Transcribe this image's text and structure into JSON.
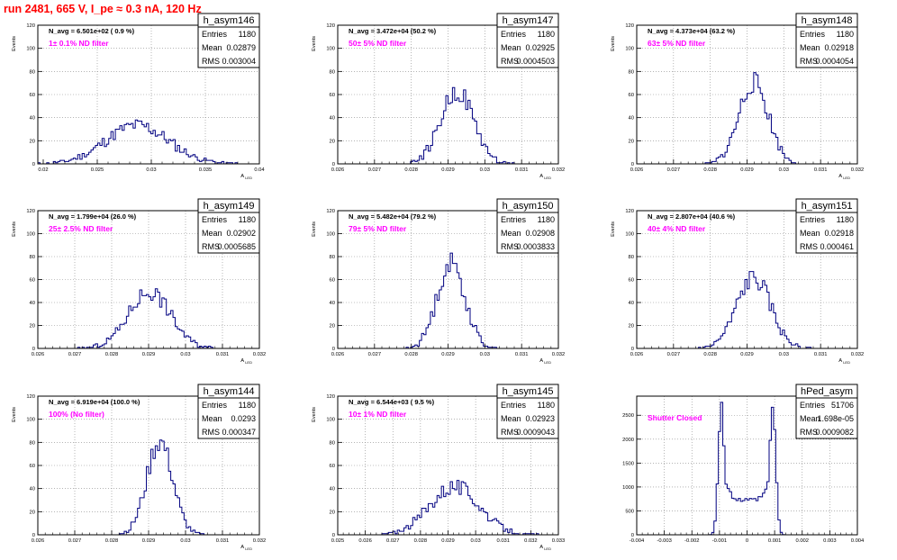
{
  "canvas_title": "run 2481,   665 V, I_pe ≈ 0.3 nA, 120 Hz",
  "stats_labels": {
    "entries": "Entries",
    "mean": "Mean",
    "rms": "RMS"
  },
  "colors": {
    "histogram": "#000080",
    "annotation": "#ff00ff",
    "title": "#ff0000",
    "grid": "#888888"
  },
  "chart_data": [
    {
      "type": "bar",
      "name": "h_asym146",
      "navg": "N_avg = 6.501e+02 ( 0.9 %)",
      "note": "1± 0.1% ND filter",
      "entries": "1180",
      "mean": "0.02879",
      "rms": "0.003004",
      "ylabel": "Events",
      "xlabel": "A_LED",
      "xlim": [
        0.0195,
        0.04
      ],
      "ylim": [
        0,
        120
      ],
      "xticks": [
        "0.02",
        "0.025",
        "0.03",
        "0.035",
        "0.04"
      ],
      "yticks": [
        "0",
        "20",
        "40",
        "60",
        "80",
        "100",
        "120"
      ],
      "dist": {
        "mu": 0.0287,
        "sigma": 0.0029,
        "bins": 100,
        "xmin": 0.0195,
        "xmax": 0.04,
        "seed": 11
      }
    },
    {
      "type": "bar",
      "name": "h_asym147",
      "navg": "N_avg = 3.472e+04 (50.2 %)",
      "note": "50± 5% ND filter",
      "entries": "1180",
      "mean": "0.02925",
      "rms": "0.0004503",
      "ylabel": "Events",
      "xlabel": "A_LED",
      "xlim": [
        0.026,
        0.032
      ],
      "ylim": [
        0,
        120
      ],
      "xticks": [
        "0.026",
        "0.027",
        "0.028",
        "0.029",
        "0.03",
        "0.031",
        "0.032"
      ],
      "yticks": [
        "0",
        "20",
        "40",
        "60",
        "80",
        "100",
        "120"
      ],
      "dist": {
        "mu": 0.02925,
        "sigma": 0.00045,
        "bins": 100,
        "xmin": 0.026,
        "xmax": 0.032,
        "seed": 22
      }
    },
    {
      "type": "bar",
      "name": "h_asym148",
      "navg": "N_avg = 4.373e+04 (63.2 %)",
      "note": "63± 5% ND filter",
      "entries": "1180",
      "mean": "0.02918",
      "rms": "0.0004054",
      "ylabel": "Events",
      "xlabel": "A_LED",
      "xlim": [
        0.026,
        0.032
      ],
      "ylim": [
        0,
        120
      ],
      "xticks": [
        "0.026",
        "0.027",
        "0.028",
        "0.029",
        "0.03",
        "0.031",
        "0.032"
      ],
      "yticks": [
        "0",
        "20",
        "40",
        "60",
        "80",
        "100",
        "120"
      ],
      "dist": {
        "mu": 0.02918,
        "sigma": 0.0004,
        "bins": 100,
        "xmin": 0.026,
        "xmax": 0.032,
        "seed": 33
      }
    },
    {
      "type": "bar",
      "name": "h_asym149",
      "navg": "N_avg = 1.799e+04 (26.0 %)",
      "note": "25± 2.5% ND filter",
      "entries": "1180",
      "mean": "0.02902",
      "rms": "0.0005685",
      "ylabel": "Events",
      "xlabel": "A_LED",
      "xlim": [
        0.026,
        0.032
      ],
      "ylim": [
        0,
        120
      ],
      "xticks": [
        "0.026",
        "0.027",
        "0.028",
        "0.029",
        "0.03",
        "0.031",
        "0.032"
      ],
      "yticks": [
        "0",
        "20",
        "40",
        "60",
        "80",
        "100",
        "120"
      ],
      "dist": {
        "mu": 0.02902,
        "sigma": 0.00057,
        "bins": 100,
        "xmin": 0.026,
        "xmax": 0.032,
        "seed": 44
      }
    },
    {
      "type": "bar",
      "name": "h_asym150",
      "navg": "N_avg = 5.482e+04 (79.2 %)",
      "note": "79± 5% ND filter",
      "entries": "1180",
      "mean": "0.02908",
      "rms": "0.0003833",
      "ylabel": "Events",
      "xlabel": "A_LED",
      "xlim": [
        0.026,
        0.032
      ],
      "ylim": [
        0,
        120
      ],
      "xticks": [
        "0.026",
        "0.027",
        "0.028",
        "0.029",
        "0.03",
        "0.031",
        "0.032"
      ],
      "yticks": [
        "0",
        "20",
        "40",
        "60",
        "80",
        "100",
        "120"
      ],
      "dist": {
        "mu": 0.02908,
        "sigma": 0.00038,
        "bins": 100,
        "xmin": 0.026,
        "xmax": 0.032,
        "seed": 55
      }
    },
    {
      "type": "bar",
      "name": "h_asym151",
      "navg": "N_avg = 2.807e+04 (40.6 %)",
      "note": "40± 4% ND filter",
      "entries": "1180",
      "mean": "0.02918",
      "rms": "0.000461",
      "ylabel": "Events",
      "xlabel": "A_LED",
      "xlim": [
        0.026,
        0.032
      ],
      "ylim": [
        0,
        120
      ],
      "xticks": [
        "0.026",
        "0.027",
        "0.028",
        "0.029",
        "0.03",
        "0.031",
        "0.032"
      ],
      "yticks": [
        "0",
        "20",
        "40",
        "60",
        "80",
        "100",
        "120"
      ],
      "dist": {
        "mu": 0.02918,
        "sigma": 0.00046,
        "bins": 100,
        "xmin": 0.026,
        "xmax": 0.032,
        "seed": 66
      }
    },
    {
      "type": "bar",
      "name": "h_asym144",
      "navg": "N_avg = 6.919e+04 (100.0 %)",
      "note": "100% (No filter)",
      "entries": "1180",
      "mean": "0.0293",
      "rms": "0.000347",
      "ylabel": "Events",
      "xlabel": "A_LED",
      "xlim": [
        0.026,
        0.032
      ],
      "ylim": [
        0,
        120
      ],
      "xticks": [
        "0.026",
        "0.027",
        "0.028",
        "0.029",
        "0.03",
        "0.031",
        "0.032"
      ],
      "yticks": [
        "0",
        "20",
        "40",
        "60",
        "80",
        "100",
        "120"
      ],
      "dist": {
        "mu": 0.0293,
        "sigma": 0.00035,
        "bins": 100,
        "xmin": 0.026,
        "xmax": 0.032,
        "seed": 77
      }
    },
    {
      "type": "bar",
      "name": "h_asym145",
      "navg": "N_avg = 6.544e+03 ( 9.5 %)",
      "note": "10± 1% ND filter",
      "entries": "1180",
      "mean": "0.02923",
      "rms": "0.0009043",
      "ylabel": "Events",
      "xlabel": "A_LED",
      "xlim": [
        0.025,
        0.033
      ],
      "ylim": [
        0,
        120
      ],
      "xticks": [
        "0.025",
        "0.026",
        "0.027",
        "0.028",
        "0.029",
        "0.03",
        "0.031",
        "0.032",
        "0.033"
      ],
      "yticks": [
        "0",
        "20",
        "40",
        "60",
        "80",
        "100",
        "120"
      ],
      "dist": {
        "mu": 0.02923,
        "sigma": 0.0009,
        "bins": 100,
        "xmin": 0.025,
        "xmax": 0.033,
        "seed": 88
      }
    },
    {
      "type": "bar",
      "name": "hPed_asym",
      "navg": "",
      "note": "Shutter Closed",
      "entries": "51706",
      "mean": "1.698e-05",
      "rms": "0.0009082",
      "ylabel": "",
      "xlabel": "",
      "xlim": [
        -0.004,
        0.004
      ],
      "ylim": [
        0,
        2900
      ],
      "xticks": [
        "-0.004",
        "-0.003",
        "-0.002",
        "-0.001",
        "0",
        "0.001",
        "0.002",
        "0.003",
        "0.004"
      ],
      "yticks": [
        "0",
        "500",
        "1000",
        "1500",
        "2000",
        "2500"
      ],
      "ped": {
        "bins": 100,
        "xmin": -0.004,
        "xmax": 0.004,
        "peak": 2700,
        "valley": 720,
        "left": -0.00093,
        "right": 0.00093,
        "seed": 99
      }
    }
  ]
}
